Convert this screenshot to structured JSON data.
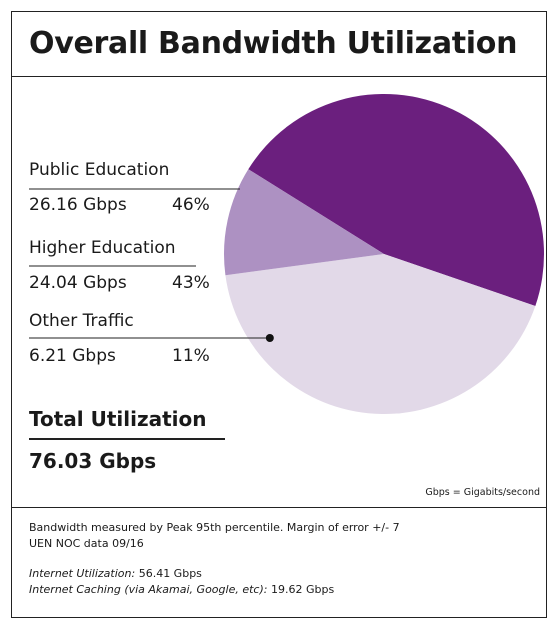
{
  "page": {
    "title": "Overall Bandwidth Utilization",
    "total_label": "Total Utilization",
    "total_value": "76.03 Gbps",
    "units_note": "Gbps = Gigabits/second",
    "footer": {
      "line1": "Bandwidth measured by Peak 95th percentile.  Margin of error +/- 7",
      "line2": "UEN  NOC data 09/16",
      "internet_label": "Internet Utilization:",
      "internet_value": " 56.41 Gbps",
      "caching_label": "Internet Caching (via Akamai, Google, etc):",
      "caching_value": " 19.62 Gbps"
    }
  },
  "chart_data": {
    "type": "pie",
    "title": "Overall Bandwidth Utilization",
    "slices": [
      {
        "name": "Public Education",
        "value_label": "26.16 Gbps",
        "percent_label": "46%",
        "value": 26.16,
        "percent": 46,
        "color": "#6b1f7e"
      },
      {
        "name": "Higher Education",
        "value_label": "24.04 Gbps",
        "percent_label": "43%",
        "value": 24.04,
        "percent": 43,
        "color": "#e2d9e8"
      },
      {
        "name": "Other Traffic",
        "value_label": "6.21 Gbps",
        "percent_label": "11%",
        "value": 6.21,
        "percent": 11,
        "color": "#ad91c2"
      }
    ]
  }
}
